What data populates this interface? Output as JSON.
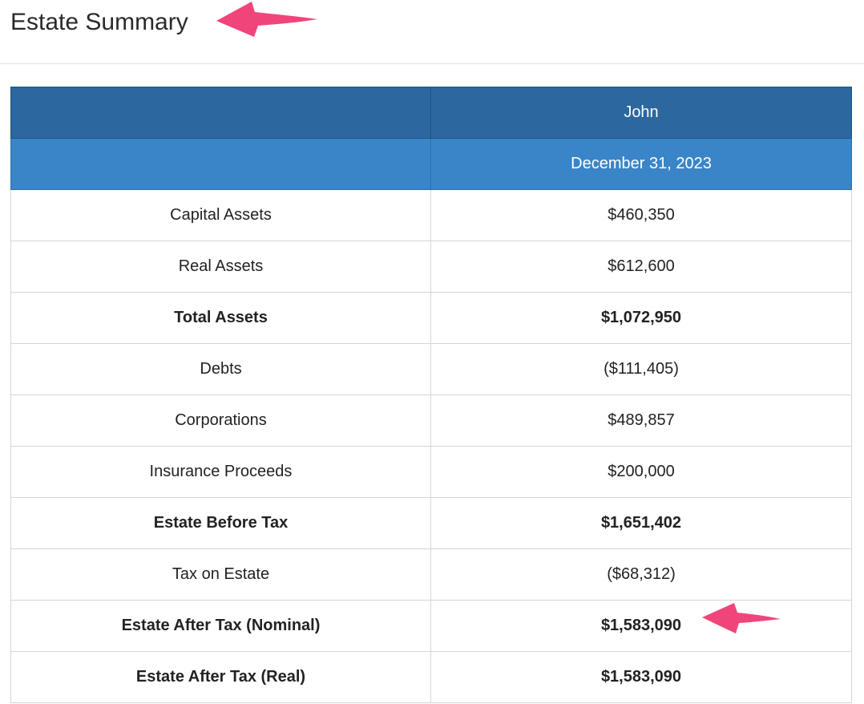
{
  "page": {
    "title": "Estate Summary"
  },
  "table": {
    "header_person": "John",
    "header_date": "December 31, 2023",
    "rows": [
      {
        "label": "Capital Assets",
        "value": "$460,350",
        "bold": false
      },
      {
        "label": "Real Assets",
        "value": "$612,600",
        "bold": false
      },
      {
        "label": "Total Assets",
        "value": "$1,072,950",
        "bold": true
      },
      {
        "label": "Debts",
        "value": "($111,405)",
        "bold": false
      },
      {
        "label": "Corporations",
        "value": "$489,857",
        "bold": false
      },
      {
        "label": "Insurance Proceeds",
        "value": "$200,000",
        "bold": false
      },
      {
        "label": "Estate Before Tax",
        "value": "$1,651,402",
        "bold": true
      },
      {
        "label": "Tax on Estate",
        "value": "($68,312)",
        "bold": false
      },
      {
        "label": "Estate After Tax (Nominal)",
        "value": "$1,583,090",
        "bold": true
      },
      {
        "label": "Estate After Tax (Real)",
        "value": "$1,583,090",
        "bold": true
      }
    ]
  },
  "annotations": {
    "arrow_color": "#f0457a",
    "header_dark_color": "#2c679f",
    "header_light_color": "#3a85c8"
  }
}
